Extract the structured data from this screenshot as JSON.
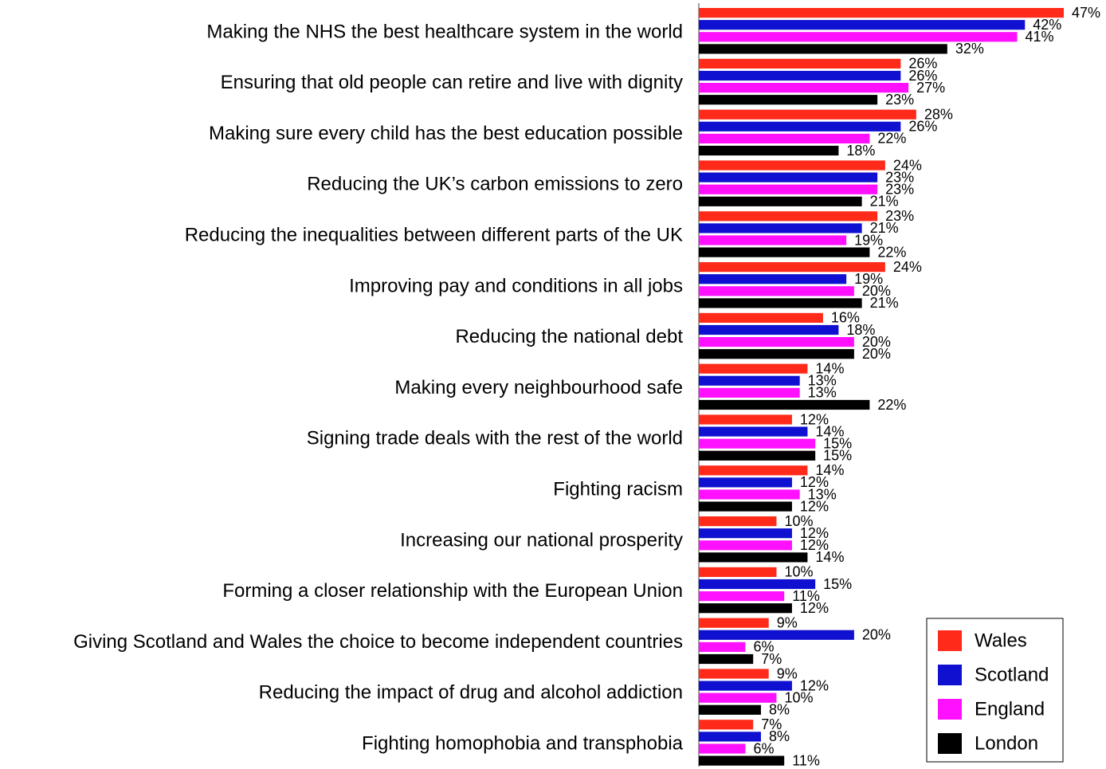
{
  "chart_data": {
    "type": "bar",
    "orientation": "horizontal",
    "title": "",
    "xlabel": "",
    "ylabel": "",
    "xlim": [
      0,
      47
    ],
    "grid": false,
    "legend_position": "bottom-right",
    "categories": [
      "Making the NHS the best healthcare system in the world",
      "Ensuring that old people can retire and live with dignity",
      "Making sure every child has the best education possible",
      "Reducing the UK’s carbon emissions to zero",
      "Reducing the inequalities between different parts of the UK",
      "Improving pay and conditions in all jobs",
      "Reducing the national debt",
      "Making every neighbourhood safe",
      "Signing trade deals with the rest of the world",
      "Fighting racism",
      "Increasing our national prosperity",
      "Forming a closer relationship with the European Union",
      "Giving Scotland and Wales the choice to become independent countries",
      "Reducing the impact of drug and alcohol addiction",
      "Fighting homophobia and transphobia"
    ],
    "series": [
      {
        "name": "Wales",
        "color": "#ff2a1a",
        "values": [
          47,
          26,
          28,
          24,
          23,
          24,
          16,
          14,
          12,
          14,
          10,
          10,
          9,
          9,
          7
        ]
      },
      {
        "name": "Scotland",
        "color": "#1010d0",
        "values": [
          42,
          26,
          26,
          23,
          21,
          19,
          18,
          13,
          14,
          12,
          12,
          15,
          20,
          12,
          8
        ]
      },
      {
        "name": "England",
        "color": "#ff10ff",
        "values": [
          41,
          27,
          22,
          23,
          19,
          20,
          20,
          13,
          15,
          13,
          12,
          11,
          6,
          10,
          6
        ]
      },
      {
        "name": "London",
        "color": "#000000",
        "values": [
          32,
          23,
          18,
          21,
          22,
          21,
          20,
          22,
          15,
          12,
          14,
          12,
          7,
          8,
          11
        ]
      }
    ],
    "value_suffix": "%"
  }
}
